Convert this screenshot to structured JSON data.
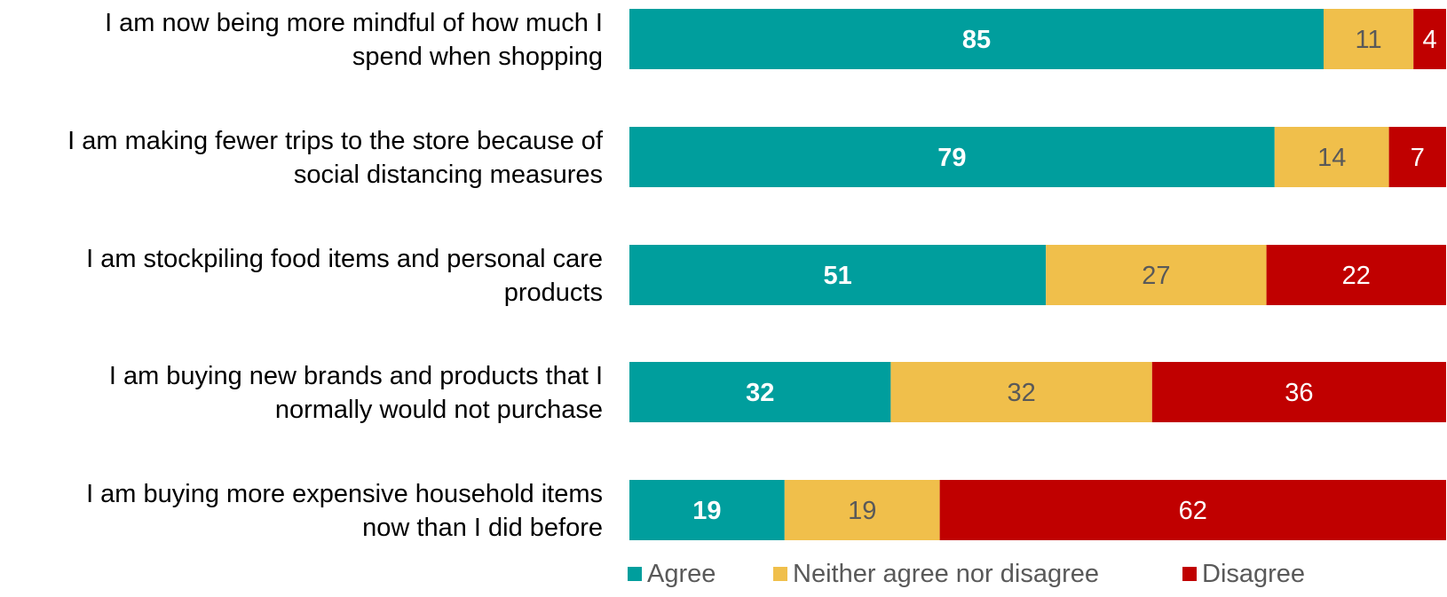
{
  "chart_data": {
    "type": "bar",
    "orientation": "horizontal",
    "stacked": true,
    "categories": [
      "I am now being more mindful of how much I spend when shopping",
      "I am making fewer trips to the store because of social distancing measures",
      "I am stockpiling food items and personal care products",
      "I am buying new brands and products that I normally would not purchase",
      "I am buying more expensive household items now than I did before"
    ],
    "category_lines": [
      [
        "I am now being more mindful of how much I",
        "spend when shopping"
      ],
      [
        "I am making fewer trips to the store because of",
        "social distancing measures"
      ],
      [
        "I am stockpiling food items and personal care",
        "products"
      ],
      [
        "I am buying new brands and products that I",
        "normally would not purchase"
      ],
      [
        "I am buying more expensive household items",
        "now than I did before"
      ]
    ],
    "series": [
      {
        "name": "Agree",
        "values": [
          85,
          79,
          51,
          32,
          19
        ],
        "color": "#009e9d",
        "label_color": "#ffffff",
        "label_bold": true
      },
      {
        "name": "Neither agree nor disagree",
        "values": [
          11,
          14,
          27,
          32,
          19
        ],
        "color": "#f0bf4b",
        "label_color": "#595959",
        "label_bold": false
      },
      {
        "name": "Disagree",
        "values": [
          4,
          7,
          22,
          36,
          62
        ],
        "color": "#c00000",
        "label_color": "#ffffff",
        "label_bold": false
      }
    ],
    "xlim": [
      0,
      100
    ],
    "grid": false,
    "legend_position": "bottom"
  }
}
